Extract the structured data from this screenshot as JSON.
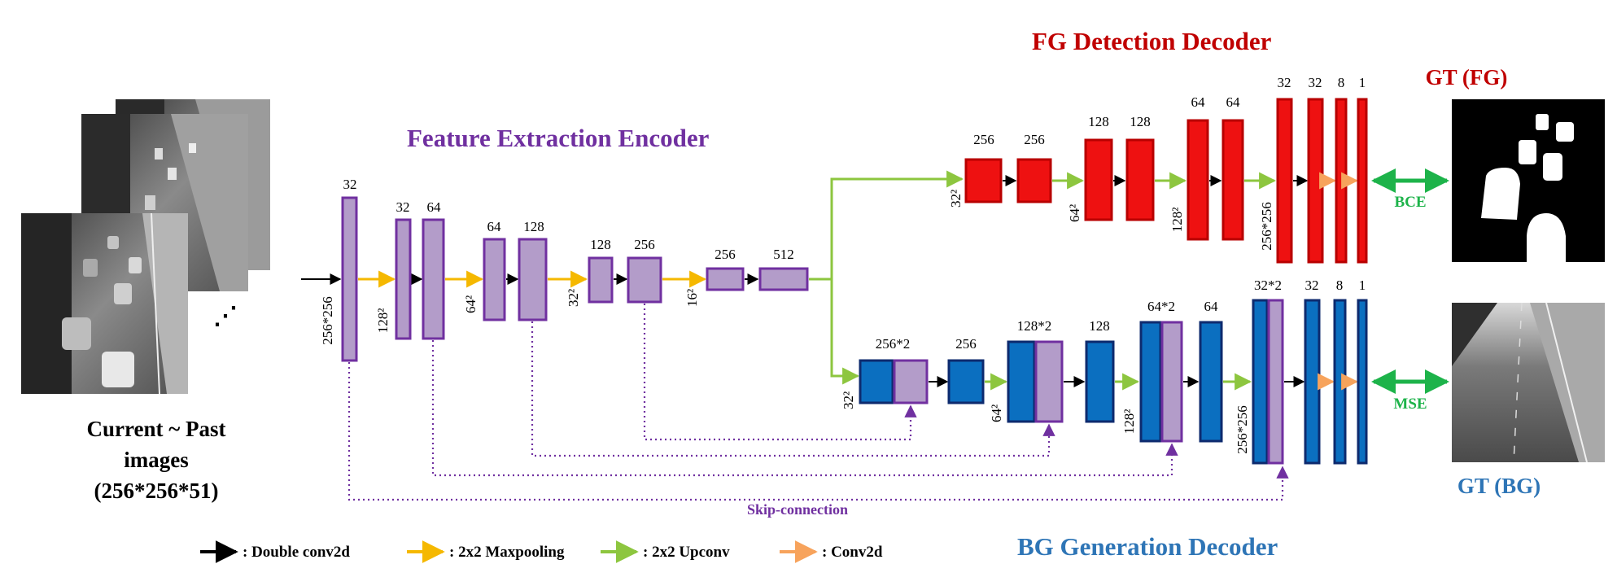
{
  "titles": {
    "encoder": "Feature Extraction Encoder",
    "fg_decoder": "FG Detection Decoder",
    "bg_decoder": "BG Generation Decoder"
  },
  "input": {
    "caption_line1": "Current ~ Past",
    "caption_line2": "images",
    "caption_line3": "(256*256*51)",
    "ellipsis": "⋰"
  },
  "outputs": {
    "gt_fg": "GT (FG)",
    "gt_bg": "GT (BG)",
    "bce": "BCE",
    "mse": "MSE"
  },
  "encoder": {
    "ch": [
      "32",
      "32",
      "64",
      "64",
      "128",
      "128",
      "256",
      "256",
      "512"
    ],
    "sizes": [
      "256*256",
      "128²",
      "64²",
      "32²",
      "16²"
    ]
  },
  "fg": {
    "ch": [
      "256",
      "256",
      "128",
      "128",
      "64",
      "64",
      "32",
      "32",
      "8",
      "1"
    ],
    "sizes": [
      "32²",
      "64²",
      "128²",
      "256*256"
    ]
  },
  "bg": {
    "ch": [
      "256*2",
      "256",
      "128*2",
      "128",
      "64*2",
      "64",
      "32*2",
      "32",
      "8",
      "1"
    ],
    "sizes": [
      "32²",
      "64²",
      "128²",
      "256*256"
    ]
  },
  "skip_label": "Skip-connection",
  "legend": [
    {
      "label": ": Double conv2d",
      "color": "#000000"
    },
    {
      "label": ": 2x2 Maxpooling",
      "color": "#f5b800"
    },
    {
      "label": ": 2x2 Upconv",
      "color": "#8dc63f"
    },
    {
      "label": ": Conv2d",
      "color": "#f7a35c"
    }
  ],
  "colors": {
    "encoder_fill": "#b39cc9",
    "encoder_stroke": "#7030a0",
    "fg_fill": "#ee1111",
    "fg_stroke": "#b80000",
    "bg_fill": "#0b6fc0",
    "bg_stroke": "#0d2a6e",
    "fg_title": "#c00000",
    "bg_title": "#2e75b6",
    "skip": "#7030a0"
  }
}
